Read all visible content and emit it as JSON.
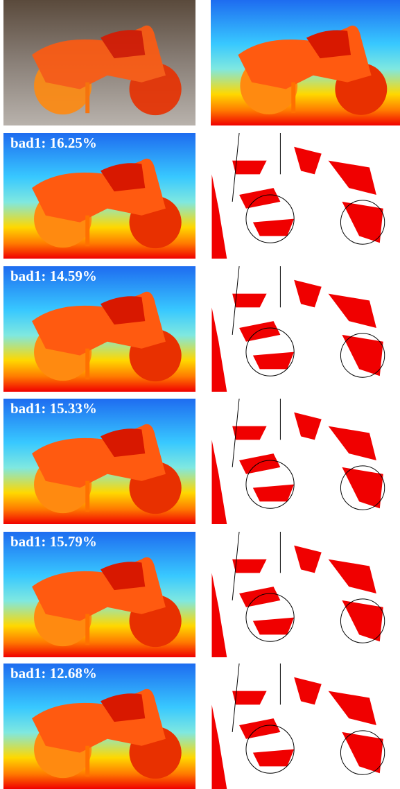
{
  "labels": [
    "bad1: 16.25%",
    "bad1: 14.59%",
    "bad1: 15.33%",
    "bad1: 15.79%",
    "bad1: 12.68%"
  ]
}
